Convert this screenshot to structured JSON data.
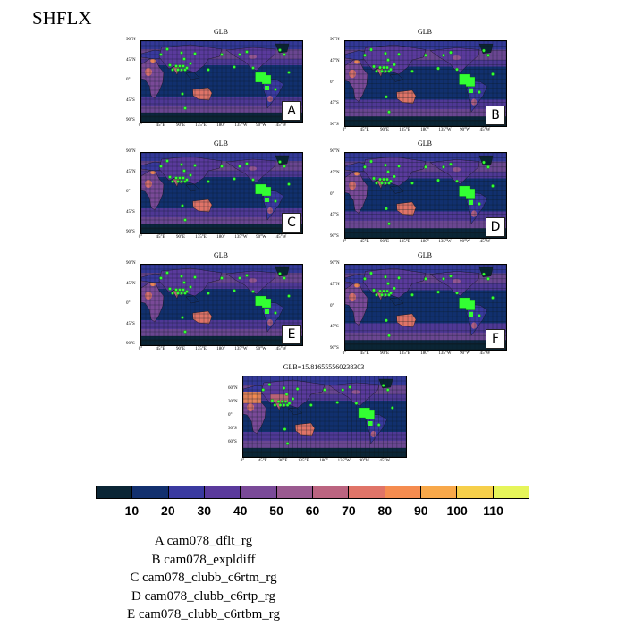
{
  "figure": {
    "title": "SHFLX"
  },
  "panels": [
    {
      "title": "GLB",
      "letter": "A"
    },
    {
      "title": "GLB",
      "letter": "B"
    },
    {
      "title": "GLB",
      "letter": "C"
    },
    {
      "title": "GLB",
      "letter": "D"
    },
    {
      "title": "GLB",
      "letter": "E"
    },
    {
      "title": "GLB",
      "letter": "F"
    },
    {
      "title": "GLB=15.816555560238303",
      "letter": ""
    }
  ],
  "axes": {
    "lat_labels": [
      "90°N",
      "45°N",
      "0°",
      "45°S",
      "90°S"
    ],
    "lat_labels_obs": [
      "60°N",
      "30°N",
      "0°",
      "30°S",
      "60°S"
    ],
    "lon_labels": [
      "0°",
      "45°E",
      "90°E",
      "135°E",
      "180°",
      "135°W",
      "90°W",
      "45°W"
    ]
  },
  "colorbar": {
    "labels": [
      "10",
      "20",
      "30",
      "40",
      "50",
      "60",
      "70",
      "80",
      "90",
      "100",
      "110"
    ],
    "colors": [
      "#0a2535",
      "#12306e",
      "#3a3aa0",
      "#5a3a9c",
      "#7a4a98",
      "#9a5a90",
      "#bb6480",
      "#e07468",
      "#f58c50",
      "#f8a84a",
      "#f6cf4a",
      "#e6f55a"
    ]
  },
  "legend": [
    "A  cam078_dflt_rg",
    "B  cam078_expldiff",
    "C  cam078_clubb_c6rtm_rg",
    "D  cam078_clubb_c6rtp_rg",
    "E  cam078_clubb_c6rtbm_rg"
  ]
}
